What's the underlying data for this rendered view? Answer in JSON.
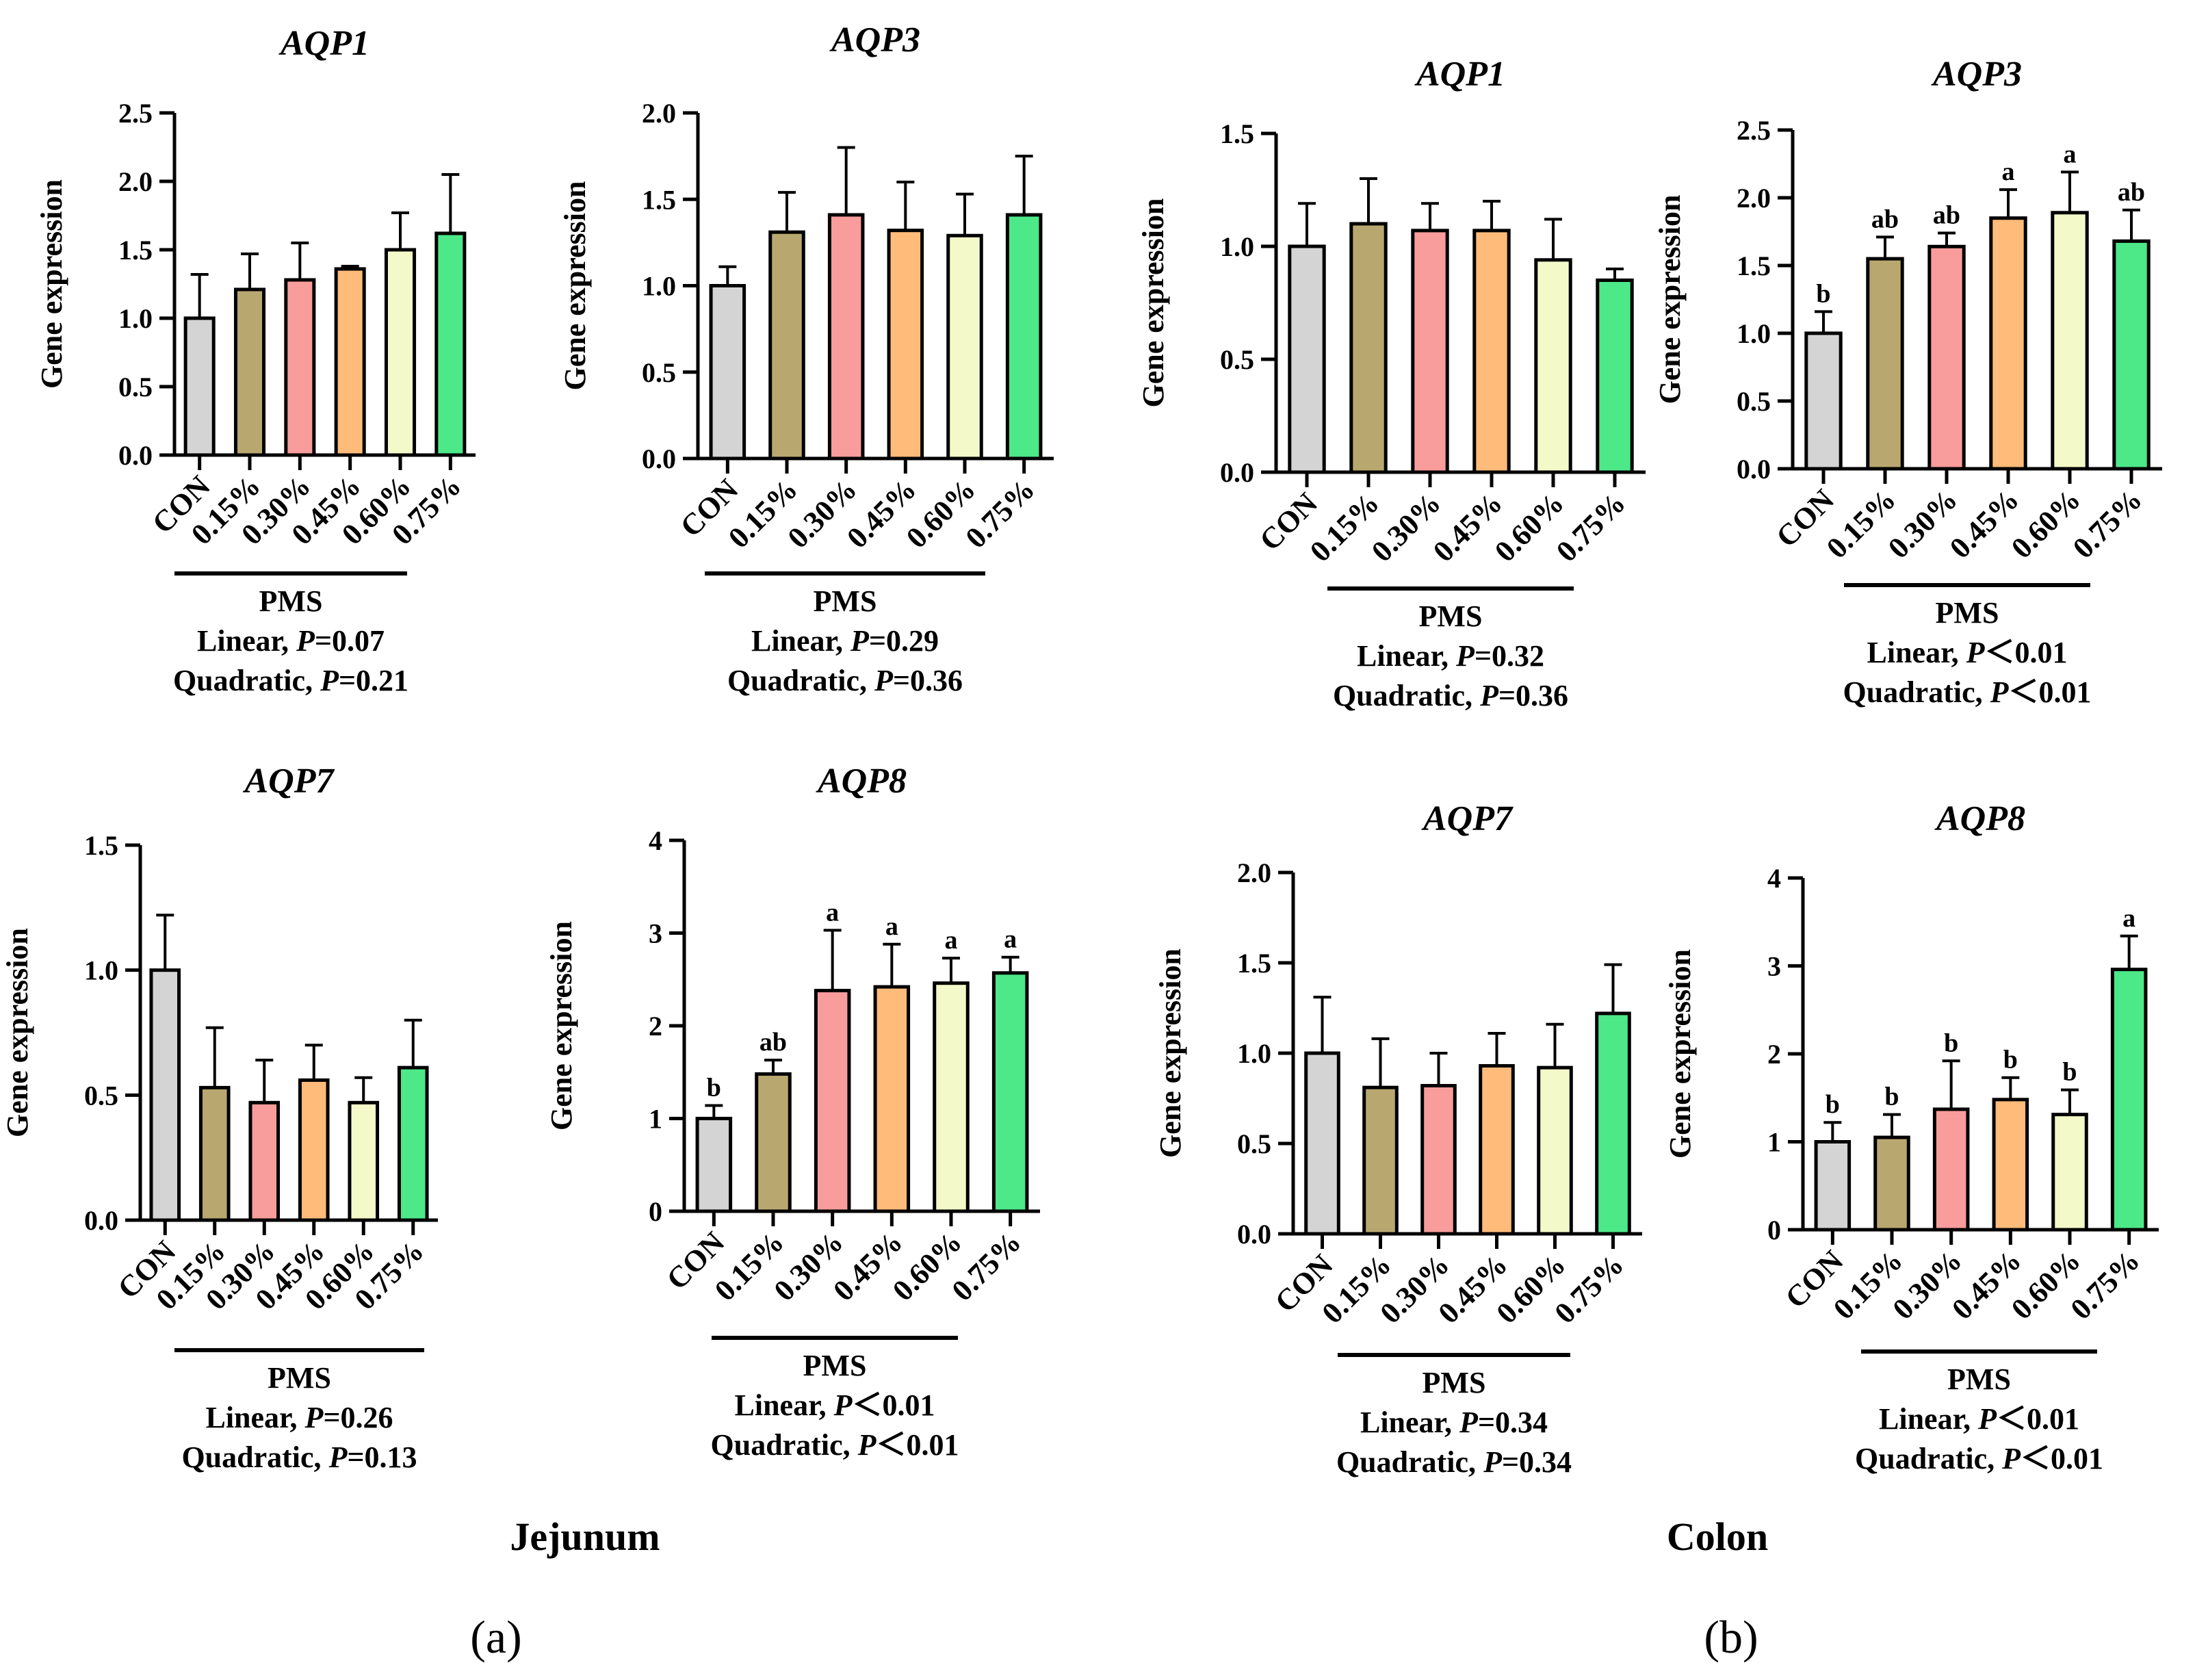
{
  "colors": [
    "#d4d4d4",
    "#b8a870",
    "#f89c9c",
    "#ffbb7a",
    "#f3f9c8",
    "#4de888"
  ],
  "groups": [
    {
      "region": "Jejunum",
      "label": "(a)"
    },
    {
      "region": "Colon",
      "label": "(b)"
    }
  ],
  "chart_data": [
    {
      "type": "bar",
      "title": "AQP1",
      "ylabel": "Gene expression",
      "categories": [
        "CON",
        "0.15%",
        "0.30%",
        "0.45%",
        "0.60%",
        "0.75%"
      ],
      "values": [
        1.0,
        1.21,
        1.28,
        1.36,
        1.5,
        1.62
      ],
      "errors": [
        0.32,
        0.26,
        0.27,
        0.02,
        0.27,
        0.43
      ],
      "letters": [
        "",
        "",
        "",
        "",
        "",
        ""
      ],
      "ylim": [
        0,
        2.5
      ],
      "yticks": [
        "0.0",
        "0.5",
        "1.0",
        "1.5",
        "2.0",
        "2.5"
      ],
      "bracket_label": "PMS",
      "linear": "Linear, ",
      "linear_p": "P",
      "linear_val": "=0.07",
      "quad": "Quadratic, ",
      "quad_p": "P",
      "quad_val": "=0.21"
    },
    {
      "type": "bar",
      "title": "AQP3",
      "ylabel": "Gene expression",
      "categories": [
        "CON",
        "0.15%",
        "0.30%",
        "0.45%",
        "0.60%",
        "0.75%"
      ],
      "values": [
        1.0,
        1.31,
        1.41,
        1.32,
        1.29,
        1.41
      ],
      "errors": [
        0.11,
        0.23,
        0.39,
        0.28,
        0.24,
        0.34
      ],
      "letters": [
        "",
        "",
        "",
        "",
        "",
        ""
      ],
      "ylim": [
        0,
        2.0
      ],
      "yticks": [
        "0.0",
        "0.5",
        "1.0",
        "1.5",
        "2.0"
      ],
      "bracket_label": "PMS",
      "linear": "Linear, ",
      "linear_p": "P",
      "linear_val": "=0.29",
      "quad": "Quadratic, ",
      "quad_p": "P",
      "quad_val": "=0.36"
    },
    {
      "type": "bar",
      "title": "AQP1",
      "ylabel": "Gene expression",
      "categories": [
        "CON",
        "0.15%",
        "0.30%",
        "0.45%",
        "0.60%",
        "0.75%"
      ],
      "values": [
        1.0,
        1.1,
        1.07,
        1.07,
        0.94,
        0.85
      ],
      "errors": [
        0.19,
        0.2,
        0.12,
        0.13,
        0.18,
        0.05
      ],
      "letters": [
        "",
        "",
        "",
        "",
        "",
        ""
      ],
      "ylim": [
        0,
        1.5
      ],
      "yticks": [
        "0.0",
        "0.5",
        "1.0",
        "1.5"
      ],
      "bracket_label": "PMS",
      "linear": "Linear, ",
      "linear_p": "P",
      "linear_val": "=0.32",
      "quad": "Quadratic, ",
      "quad_p": "P",
      "quad_val": "=0.36"
    },
    {
      "type": "bar",
      "title": "AQP3",
      "ylabel": "Gene expression",
      "categories": [
        "CON",
        "0.15%",
        "0.30%",
        "0.45%",
        "0.60%",
        "0.75%"
      ],
      "values": [
        1.0,
        1.55,
        1.64,
        1.85,
        1.89,
        1.68
      ],
      "errors": [
        0.16,
        0.16,
        0.1,
        0.21,
        0.3,
        0.23
      ],
      "letters": [
        "b",
        "ab",
        "ab",
        "a",
        "a",
        "ab"
      ],
      "ylim": [
        0,
        2.5
      ],
      "yticks": [
        "0.0",
        "0.5",
        "1.0",
        "1.5",
        "2.0",
        "2.5"
      ],
      "bracket_label": "PMS",
      "linear": "Linear, ",
      "linear_p": "P",
      "linear_val": "＜0.01",
      "quad": "Quadratic, ",
      "quad_p": "P",
      "quad_val": "＜0.01"
    },
    {
      "type": "bar",
      "title": "AQP7",
      "ylabel": "Gene expression",
      "categories": [
        "CON",
        "0.15%",
        "0.30%",
        "0.45%",
        "0.60%",
        "0.75%"
      ],
      "values": [
        1.0,
        0.53,
        0.47,
        0.56,
        0.47,
        0.61
      ],
      "errors": [
        0.22,
        0.24,
        0.17,
        0.14,
        0.1,
        0.19
      ],
      "letters": [
        "",
        "",
        "",
        "",
        "",
        ""
      ],
      "ylim": [
        0,
        1.5
      ],
      "yticks": [
        "0.0",
        "0.5",
        "1.0",
        "1.5"
      ],
      "bracket_label": "PMS",
      "linear": "Linear, ",
      "linear_p": "P",
      "linear_val": "=0.26",
      "quad": "Quadratic, ",
      "quad_p": "P",
      "quad_val": "=0.13"
    },
    {
      "type": "bar",
      "title": "AQP8",
      "ylabel": "Gene expression",
      "categories": [
        "CON",
        "0.15%",
        "0.30%",
        "0.45%",
        "0.60%",
        "0.75%"
      ],
      "values": [
        1.0,
        1.48,
        2.38,
        2.42,
        2.46,
        2.57
      ],
      "errors": [
        0.14,
        0.15,
        0.65,
        0.46,
        0.27,
        0.17
      ],
      "letters": [
        "b",
        "ab",
        "a",
        "a",
        "a",
        "a"
      ],
      "ylim": [
        0,
        4
      ],
      "yticks": [
        "0",
        "1",
        "2",
        "3",
        "4"
      ],
      "bracket_label": "PMS",
      "linear": "Linear, ",
      "linear_p": "P",
      "linear_val": "＜0.01",
      "quad": "Quadratic, ",
      "quad_p": "P",
      "quad_val": "＜0.01"
    },
    {
      "type": "bar",
      "title": "AQP7",
      "ylabel": "Gene expression",
      "categories": [
        "CON",
        "0.15%",
        "0.30%",
        "0.45%",
        "0.60%",
        "0.75%"
      ],
      "values": [
        1.0,
        0.81,
        0.82,
        0.93,
        0.92,
        1.22
      ],
      "errors": [
        0.31,
        0.27,
        0.18,
        0.18,
        0.24,
        0.27
      ],
      "letters": [
        "",
        "",
        "",
        "",
        "",
        ""
      ],
      "ylim": [
        0,
        2.0
      ],
      "yticks": [
        "0.0",
        "0.5",
        "1.0",
        "1.5",
        "2.0"
      ],
      "bracket_label": "PMS",
      "linear": "Linear, ",
      "linear_p": "P",
      "linear_val": "=0.34",
      "quad": "Quadratic, ",
      "quad_p": "P",
      "quad_val": "=0.34"
    },
    {
      "type": "bar",
      "title": "AQP8",
      "ylabel": "Gene expression",
      "categories": [
        "CON",
        "0.15%",
        "0.30%",
        "0.45%",
        "0.60%",
        "0.75%"
      ],
      "values": [
        1.0,
        1.05,
        1.37,
        1.48,
        1.31,
        2.96
      ],
      "errors": [
        0.22,
        0.26,
        0.55,
        0.25,
        0.28,
        0.38
      ],
      "letters": [
        "b",
        "b",
        "b",
        "b",
        "b",
        "a"
      ],
      "ylim": [
        0,
        4
      ],
      "yticks": [
        "0",
        "1",
        "2",
        "3",
        "4"
      ],
      "bracket_label": "PMS",
      "linear": "Linear, ",
      "linear_p": "P",
      "linear_val": "＜0.01",
      "quad": "Quadratic, ",
      "quad_p": "P",
      "quad_val": "＜0.01"
    }
  ]
}
